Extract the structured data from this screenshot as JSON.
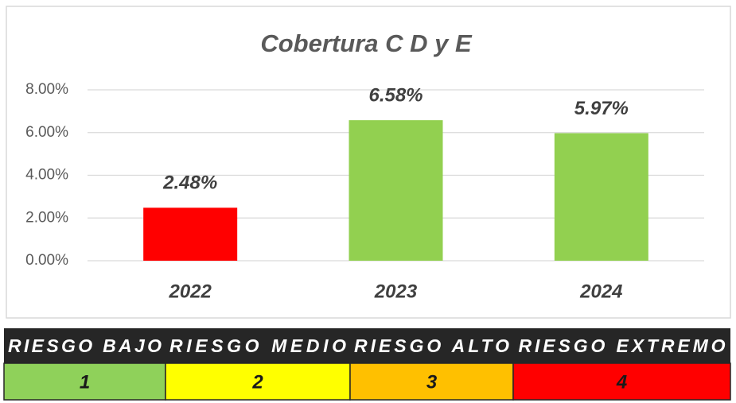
{
  "chart_data": {
    "type": "bar",
    "title": "Cobertura C D y E",
    "categories": [
      "2022",
      "2023",
      "2024"
    ],
    "values": [
      2.48,
      6.58,
      5.97
    ],
    "value_labels": [
      "2.48%",
      "6.58%",
      "5.97%"
    ],
    "colors": [
      "#ff0000",
      "#92d050",
      "#92d050"
    ],
    "ylim": [
      0,
      8
    ],
    "yticks": [
      {
        "value": 0,
        "label": "0.00%"
      },
      {
        "value": 2,
        "label": "2.00%"
      },
      {
        "value": 4,
        "label": "4.00%"
      },
      {
        "value": 6,
        "label": "6.00%"
      },
      {
        "value": 8,
        "label": "8.00%"
      }
    ],
    "grid": true
  },
  "risk_table": {
    "headers": [
      "RIESGO BAJO",
      "RIESGO MEDIO",
      "RIESGO ALTO",
      "RIESGO EXTREMO"
    ],
    "levels": [
      1,
      2,
      3,
      4
    ],
    "colors": [
      "#8fd15a",
      "#ffff00",
      "#ffc000",
      "#ff0000"
    ]
  }
}
